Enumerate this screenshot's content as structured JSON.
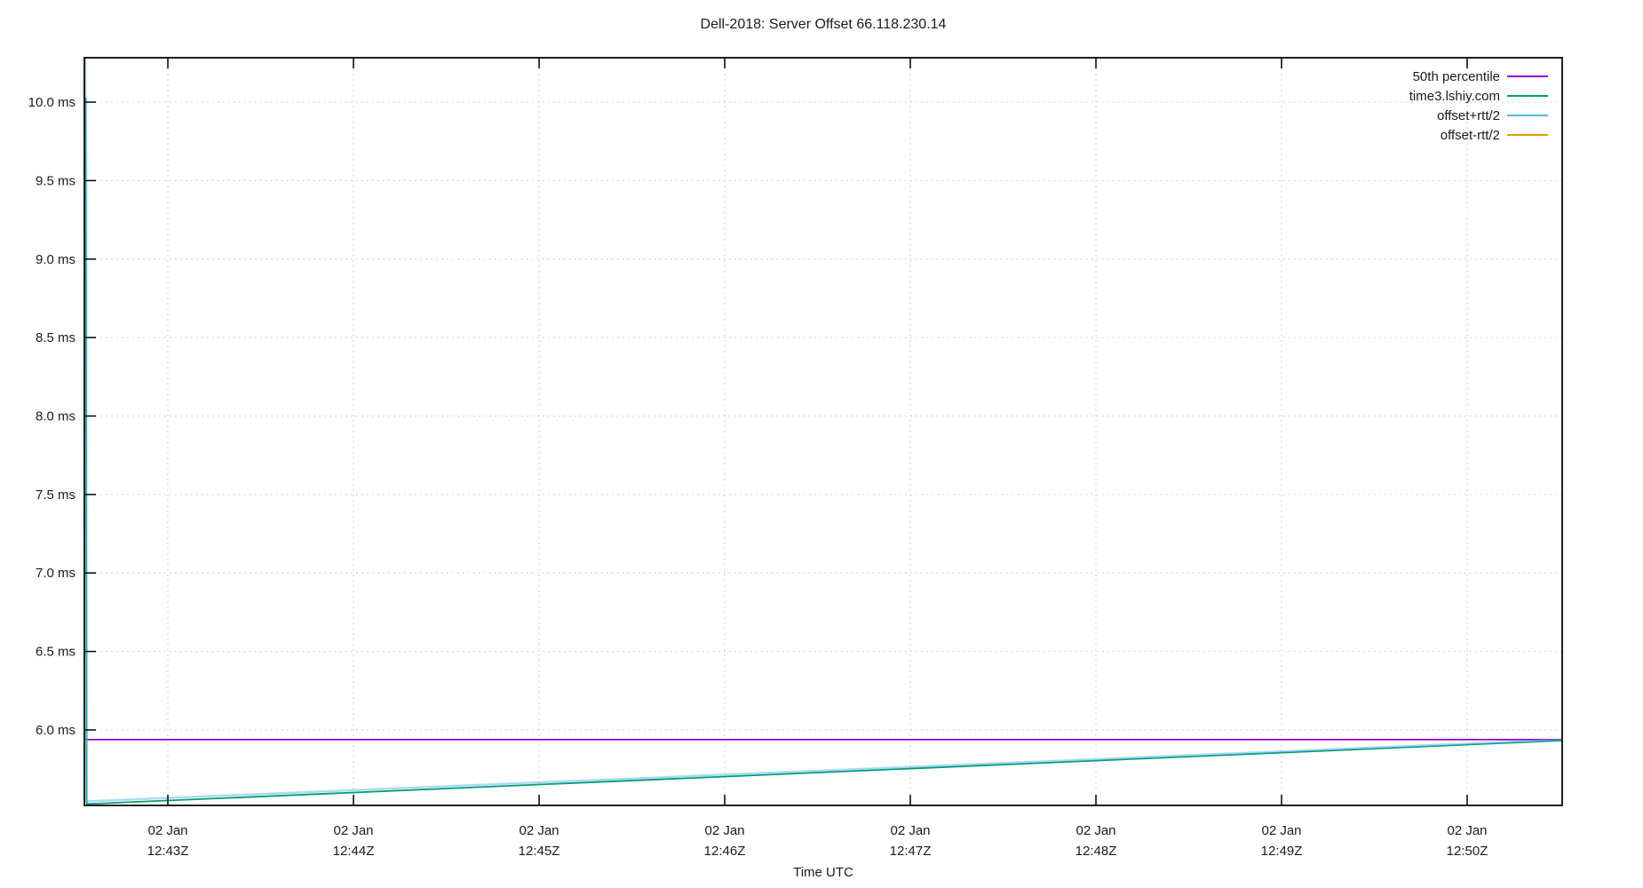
{
  "chart_data": {
    "type": "line",
    "title": "Dell-2018: Server Offset 66.118.230.14",
    "xlabel": "Time UTC",
    "ylabel": "",
    "grid": "dotted",
    "legend_position": "top-right-inside",
    "x_axis": {
      "unit": "minutes after 12:00Z on 02 Jan",
      "range": [
        42.5502,
        50.5119
      ],
      "ticks": [
        {
          "value": 43,
          "line1": "02 Jan",
          "line2": "12:43Z"
        },
        {
          "value": 44,
          "line1": "02 Jan",
          "line2": "12:44Z"
        },
        {
          "value": 45,
          "line1": "02 Jan",
          "line2": "12:45Z"
        },
        {
          "value": 46,
          "line1": "02 Jan",
          "line2": "12:46Z"
        },
        {
          "value": 47,
          "line1": "02 Jan",
          "line2": "12:47Z"
        },
        {
          "value": 48,
          "line1": "02 Jan",
          "line2": "12:48Z"
        },
        {
          "value": 49,
          "line1": "02 Jan",
          "line2": "12:49Z"
        },
        {
          "value": 50,
          "line1": "02 Jan",
          "line2": "12:50Z"
        }
      ]
    },
    "y_axis": {
      "unit": "ms",
      "range": [
        5.519,
        10.283
      ],
      "ticks": [
        {
          "value": 6.0,
          "label": "6.0 ms"
        },
        {
          "value": 6.5,
          "label": "6.5 ms"
        },
        {
          "value": 7.0,
          "label": "7.0 ms"
        },
        {
          "value": 7.5,
          "label": "7.5 ms"
        },
        {
          "value": 8.0,
          "label": "8.0 ms"
        },
        {
          "value": 8.5,
          "label": "8.5 ms"
        },
        {
          "value": 9.0,
          "label": "9.0 ms"
        },
        {
          "value": 9.5,
          "label": "9.5 ms"
        },
        {
          "value": 10.0,
          "label": "10.0 ms"
        }
      ]
    },
    "series": [
      {
        "name": "50th percentile",
        "color": "#9400d3",
        "width": 1.8,
        "opacity": 1,
        "points": [
          [
            42.5502,
            5.938
          ],
          [
            50.5119,
            5.938
          ]
        ]
      },
      {
        "name": "time3.lshiy.com",
        "color": "#009e73",
        "width": 1.8,
        "opacity": 1,
        "points": [
          [
            42.558,
            10.03
          ],
          [
            42.563,
            5.528
          ],
          [
            50.5119,
            5.932
          ]
        ]
      },
      {
        "name": "offset+rtt/2",
        "color": "#56b4e9",
        "width": 2.4,
        "opacity": 0.5,
        "points": [
          [
            42.556,
            10.283
          ],
          [
            42.561,
            5.545
          ],
          [
            50.5119,
            5.938
          ]
        ]
      },
      {
        "name": "offset-rtt/2",
        "color": "#e69f00",
        "width": 1.8,
        "opacity": 1,
        "points": [
          [
            42.561,
            5.5
          ],
          [
            50.5119,
            5.515
          ]
        ]
      }
    ],
    "colors": {
      "border": "#000000",
      "grid": "#c0c0c0",
      "text": "#1a1a1a"
    }
  }
}
